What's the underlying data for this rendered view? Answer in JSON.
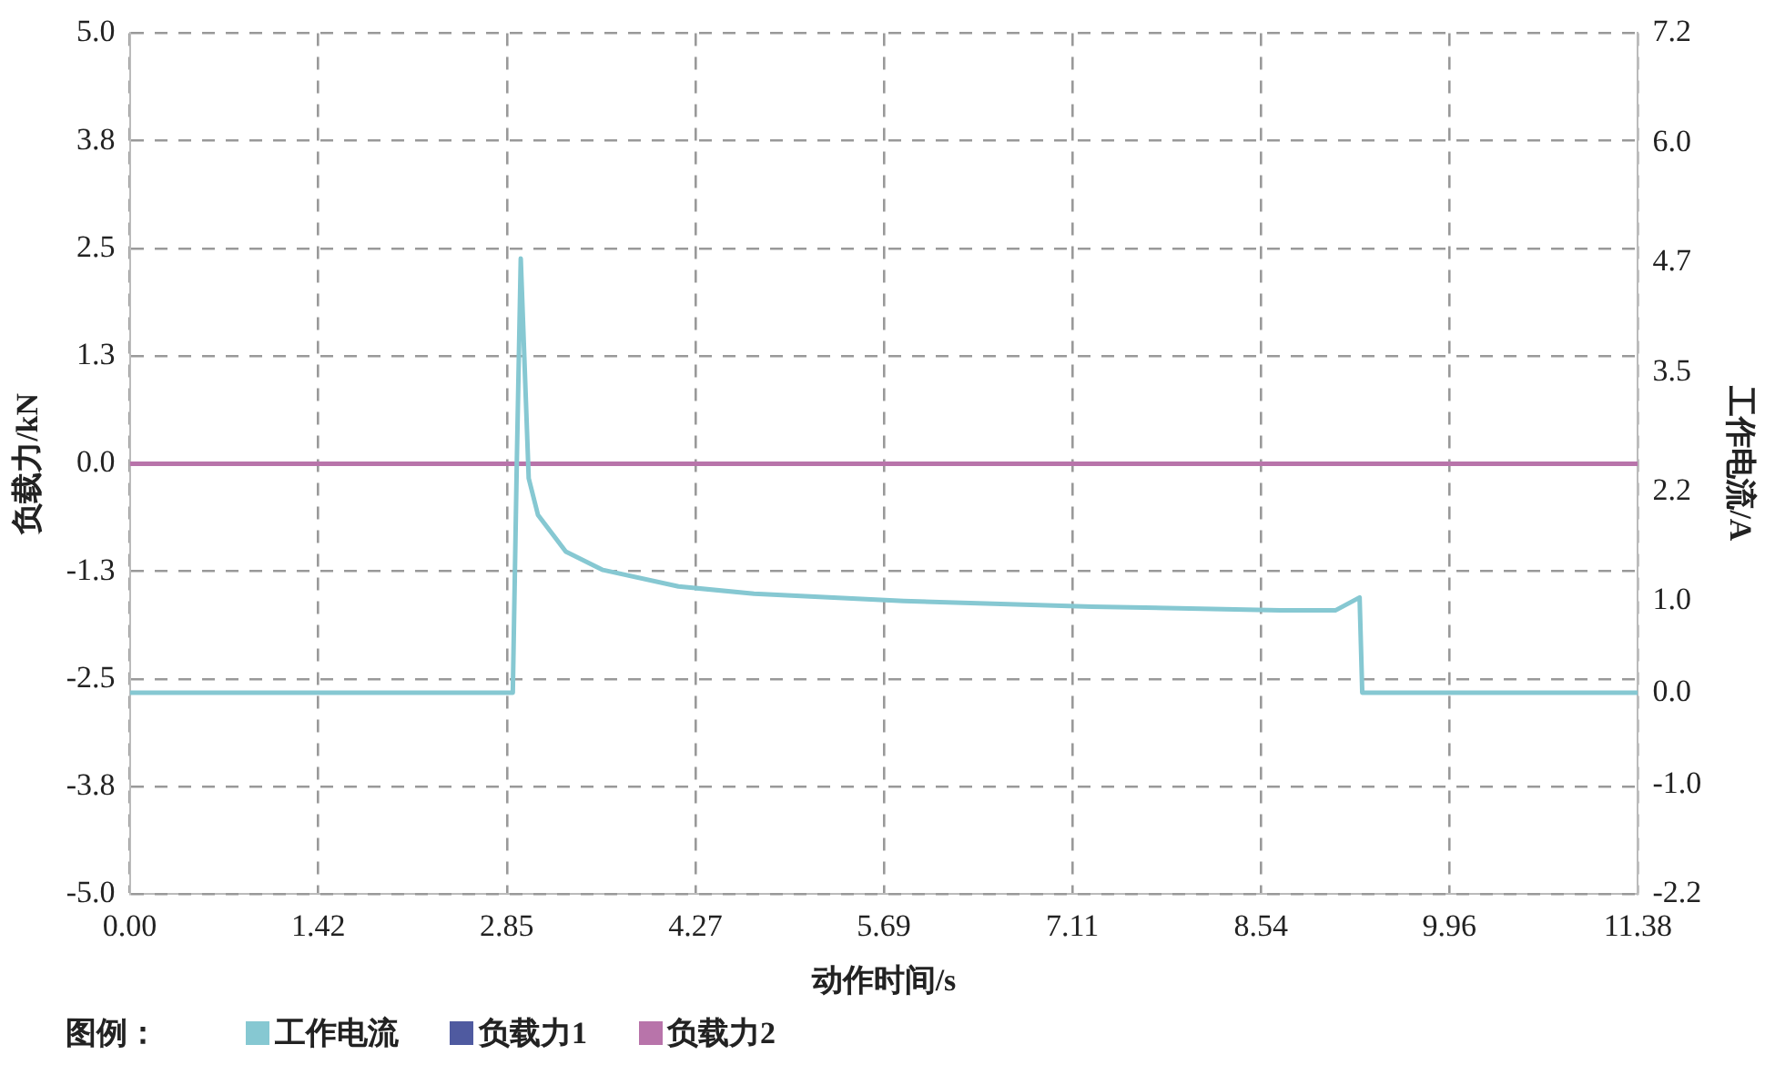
{
  "chart_data": {
    "type": "line",
    "xlabel": "动作时间/s",
    "ylabel": "负载力/kN",
    "y2label": "工作电流/A",
    "legend_title": "图例：",
    "xlim": [
      0,
      11.38
    ],
    "xticks": [
      {
        "value": 0,
        "label": "0.00"
      },
      {
        "value": 1.4225,
        "label": "1.42"
      },
      {
        "value": 2.845,
        "label": "2.85"
      },
      {
        "value": 4.2675,
        "label": "4.27"
      },
      5.69,
      {
        "value": 7.1125,
        "label": "7.11"
      },
      {
        "value": 8.535,
        "label": "8.54"
      },
      {
        "value": 9.9575,
        "label": "9.96"
      },
      11.38
    ],
    "ylim": [
      -5,
      5
    ],
    "yticks": [
      {
        "value": -5,
        "label": "-5.0"
      },
      {
        "value": -3.75,
        "label": "-3.8"
      },
      {
        "value": -2.5,
        "label": "-2.5"
      },
      {
        "value": -1.25,
        "label": "-1.3"
      },
      {
        "value": 0,
        "label": "0.0"
      },
      {
        "value": 1.25,
        "label": "1.3"
      },
      {
        "value": 2.5,
        "label": "2.5"
      },
      {
        "value": 3.75,
        "label": "3.8"
      },
      {
        "value": 5,
        "label": "5.0"
      }
    ],
    "y2lim": [
      -2.2,
      7.2
    ],
    "y2ticks": [
      {
        "value": -2.2,
        "label": "-2.2"
      },
      {
        "value": -1,
        "label": "-1.0"
      },
      {
        "value": 0,
        "label": "0.0"
      },
      {
        "value": 1,
        "label": "1.0"
      },
      {
        "value": 2.2,
        "label": "2.2"
      },
      {
        "value": 3.5,
        "label": "3.5"
      },
      4.7,
      {
        "value": 6,
        "label": "6.0"
      },
      7.2
    ],
    "grid": true,
    "legend": "bottom left",
    "line_style": "solid",
    "marker": "none",
    "series": [
      {
        "name": "工作电流",
        "color": "#86c8d2",
        "axis": "y2",
        "x": [
          0,
          2.89,
          2.92,
          2.95,
          3.01,
          3.08,
          3.29,
          3.57,
          4.14,
          4.71,
          5.84,
          7.26,
          8.68,
          9.1,
          9.28,
          9.3,
          11.38
        ],
        "values": [
          0,
          0,
          2.5,
          4.74,
          2.34,
          1.94,
          1.54,
          1.34,
          1.16,
          1.08,
          1.0,
          0.94,
          0.9,
          0.9,
          1.04,
          0,
          0
        ]
      },
      {
        "name": "负载力1",
        "color": "#4f5aa0",
        "values": [
          null
        ]
      },
      {
        "name": "负载力2",
        "color": "#b874aa",
        "x": [
          0,
          11.38
        ],
        "values": [
          0,
          0
        ]
      }
    ]
  }
}
